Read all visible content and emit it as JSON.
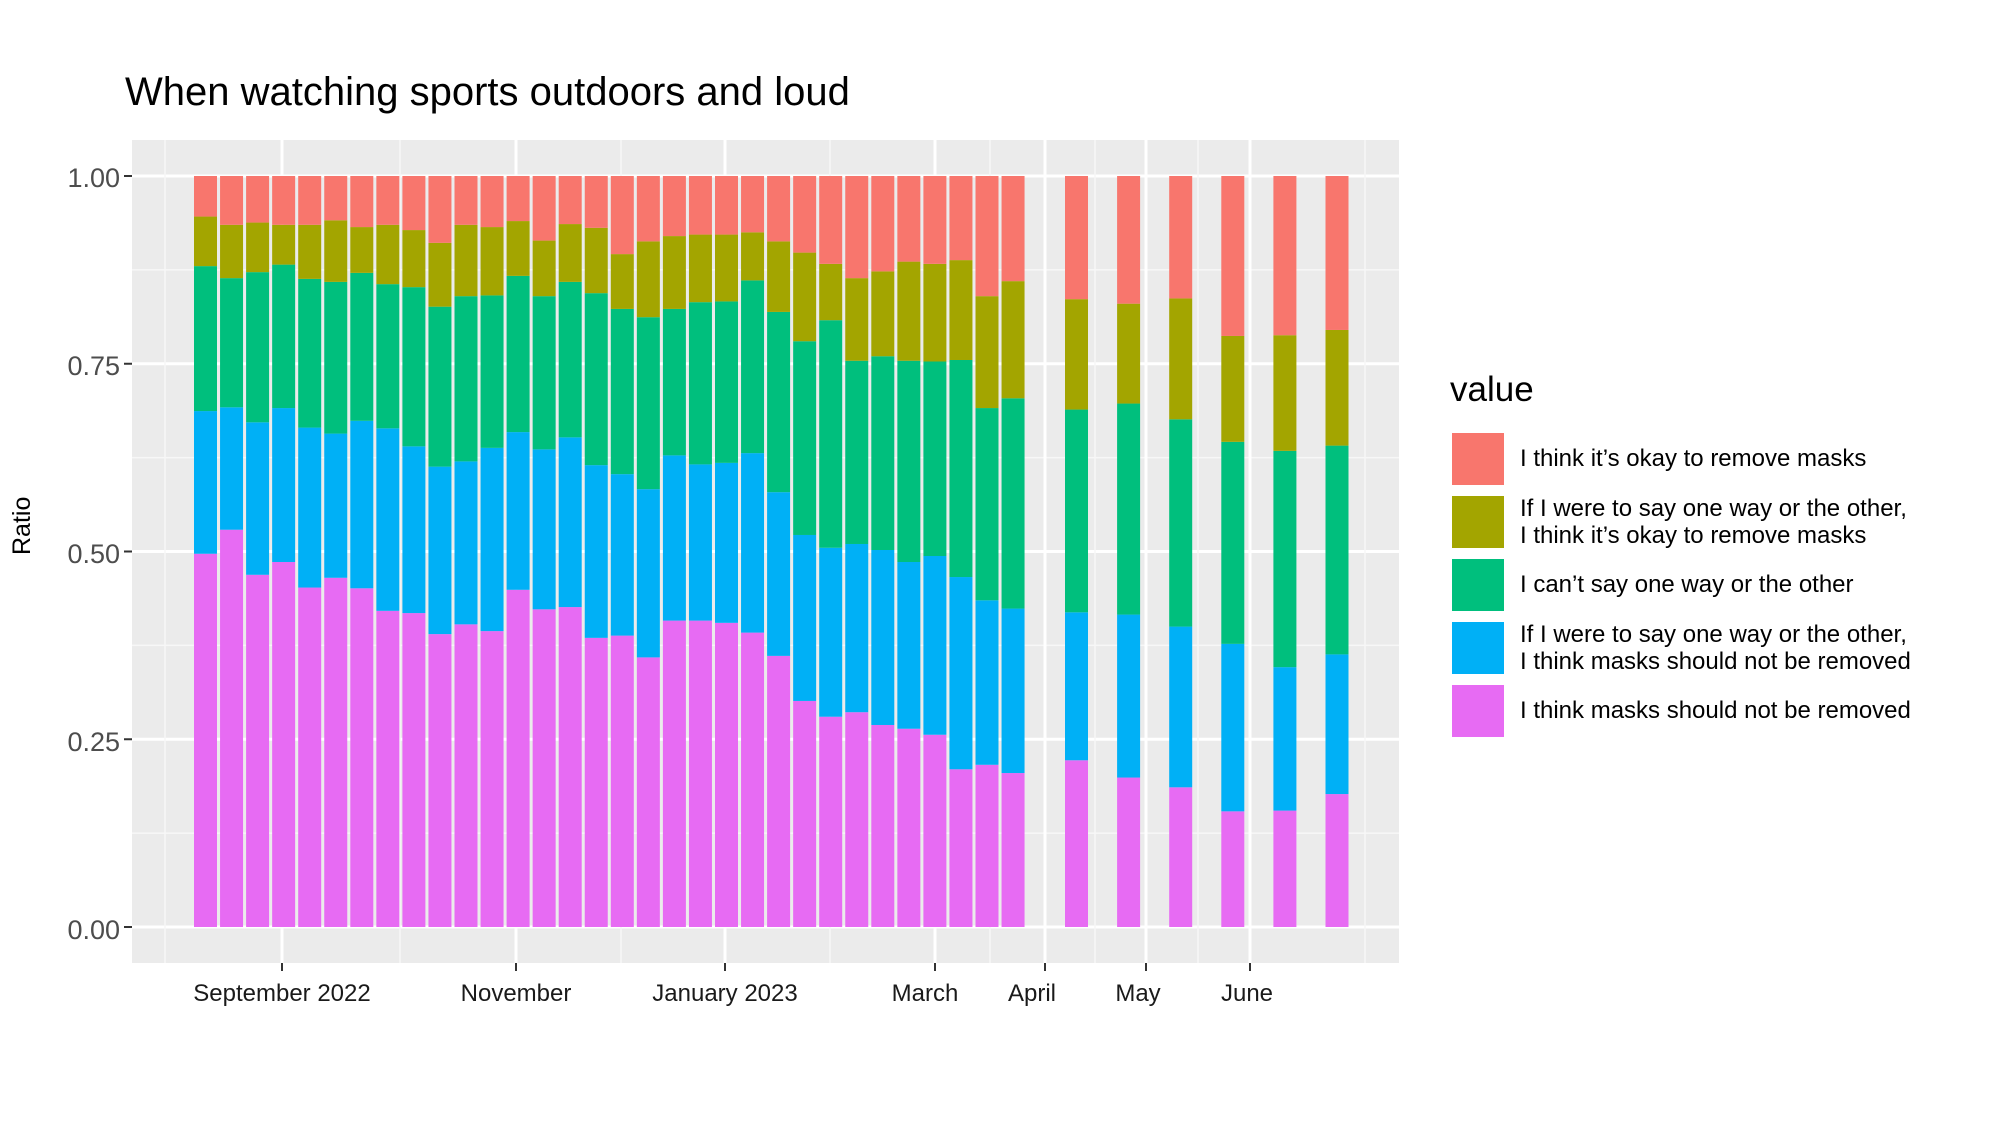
{
  "chart_data": {
    "type": "bar",
    "title": "When watching sports outdoors and loud",
    "ylabel": "Ratio",
    "xlabel": "",
    "ylim": [
      0,
      1
    ],
    "y_ticks": [
      "0.00",
      "0.25",
      "0.50",
      "0.75",
      "1.00"
    ],
    "x_ticks": [
      "September 2022",
      "November",
      "January 2023",
      "March",
      "April",
      "May",
      "June"
    ],
    "stacked": true,
    "legend_title": "value",
    "legend_position": "right",
    "grid": true,
    "colors": [
      "#E76BF3",
      "#00B0F6",
      "#00BF7D",
      "#A3A500",
      "#F8766D"
    ],
    "series": [
      {
        "name": "I think masks should not be removed",
        "values": [
          0.497,
          0.529,
          0.469,
          0.486,
          0.452,
          0.465,
          0.451,
          0.421,
          0.418,
          0.39,
          0.403,
          0.394,
          0.449,
          0.423,
          0.426,
          0.385,
          0.388,
          0.359,
          0.408,
          0.408,
          0.405,
          0.392,
          0.361,
          0.301,
          0.28,
          0.286,
          0.269,
          0.264,
          0.256,
          0.21,
          0.216,
          0.205,
          0.222,
          0.199,
          0.186,
          0.154,
          0.155,
          0.177
        ]
      },
      {
        "name": "If I were to say one way or the other,\nI think masks should not be removed",
        "values": [
          0.19,
          0.163,
          0.203,
          0.205,
          0.213,
          0.192,
          0.223,
          0.243,
          0.222,
          0.223,
          0.217,
          0.244,
          0.21,
          0.213,
          0.226,
          0.23,
          0.215,
          0.224,
          0.22,
          0.208,
          0.213,
          0.239,
          0.218,
          0.221,
          0.225,
          0.224,
          0.233,
          0.222,
          0.238,
          0.256,
          0.219,
          0.219,
          0.197,
          0.217,
          0.214,
          0.223,
          0.191,
          0.186
        ]
      },
      {
        "name": "I can’t say one way or the other",
        "values": [
          0.193,
          0.172,
          0.2,
          0.191,
          0.198,
          0.202,
          0.197,
          0.192,
          0.212,
          0.213,
          0.22,
          0.203,
          0.208,
          0.204,
          0.207,
          0.229,
          0.22,
          0.229,
          0.195,
          0.216,
          0.215,
          0.23,
          0.24,
          0.258,
          0.303,
          0.244,
          0.258,
          0.268,
          0.259,
          0.289,
          0.256,
          0.28,
          0.27,
          0.281,
          0.276,
          0.269,
          0.288,
          0.278
        ]
      },
      {
        "name": "If I were to say one way or the other,\nI think it’s okay to remove  masks",
        "values": [
          0.066,
          0.071,
          0.066,
          0.053,
          0.072,
          0.082,
          0.061,
          0.079,
          0.076,
          0.085,
          0.095,
          0.091,
          0.073,
          0.074,
          0.077,
          0.087,
          0.073,
          0.101,
          0.097,
          0.09,
          0.089,
          0.064,
          0.094,
          0.118,
          0.075,
          0.11,
          0.113,
          0.132,
          0.13,
          0.133,
          0.149,
          0.156,
          0.147,
          0.133,
          0.161,
          0.141,
          0.154,
          0.154
        ]
      },
      {
        "name": "I think it’s okay to remove masks",
        "values": [
          0.054,
          0.065,
          0.062,
          0.065,
          0.065,
          0.059,
          0.068,
          0.065,
          0.072,
          0.089,
          0.065,
          0.068,
          0.06,
          0.086,
          0.064,
          0.069,
          0.104,
          0.087,
          0.08,
          0.078,
          0.078,
          0.075,
          0.087,
          0.102,
          0.117,
          0.136,
          0.127,
          0.114,
          0.117,
          0.112,
          0.16,
          0.14,
          0.164,
          0.17,
          0.163,
          0.213,
          0.212,
          0.205
        ]
      }
    ]
  }
}
